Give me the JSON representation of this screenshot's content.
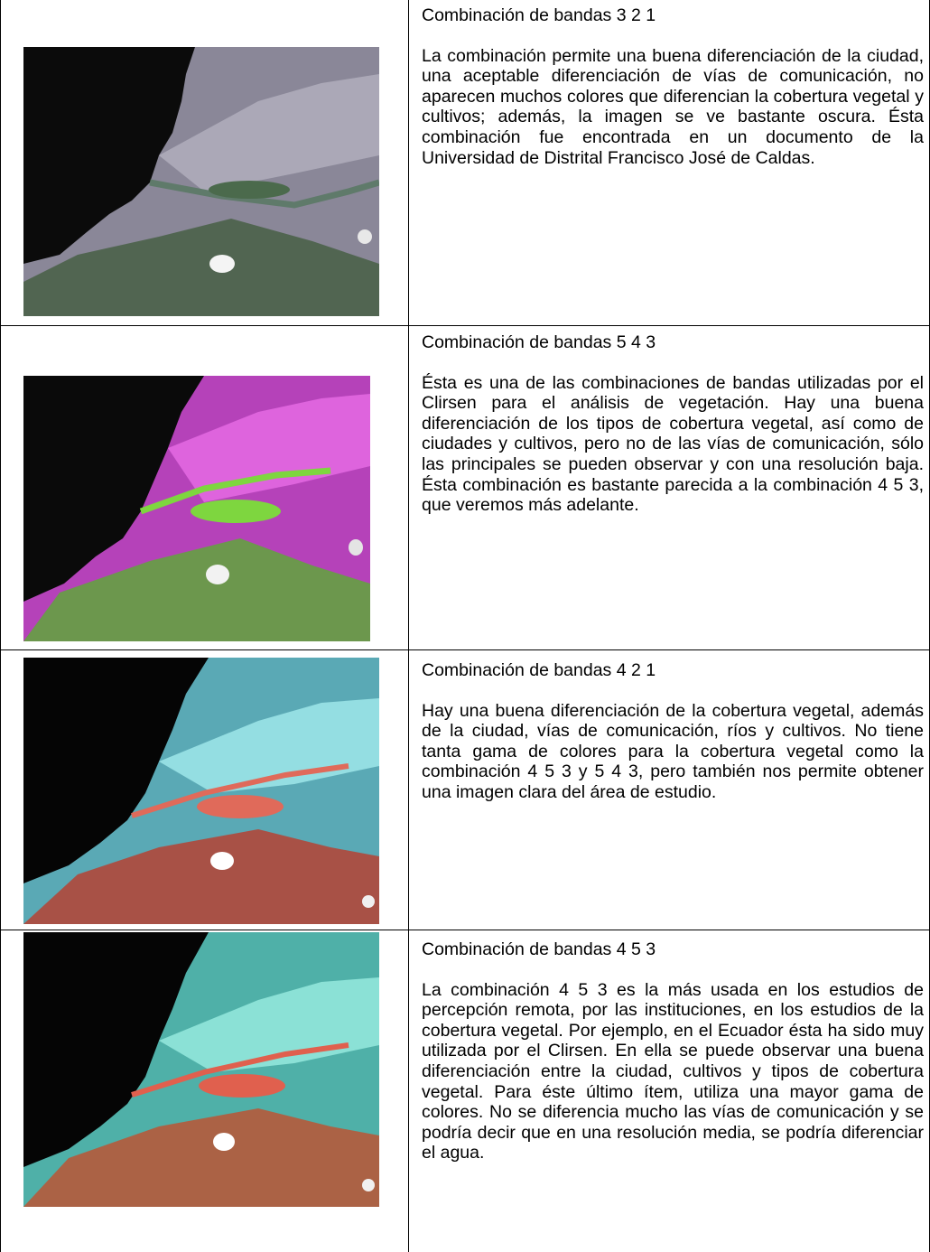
{
  "rows": [
    {
      "title": "Combinación de bandas 3 2 1",
      "text": "La combinación permite una buena diferenciación de la ciudad, una aceptable diferenciación de vías de comunicación, no aparecen muchos colores que diferencian la cobertura vegetal y cultivos; además, la imagen se ve bastante oscura. Ésta combinación fue encontrada en un documento de la Universidad de Distrital Francisco José de Caldas.",
      "image": "satellite-image-321",
      "palette": {
        "sea": "#0b0b0b",
        "land": "#8a8798",
        "light": "#b9b6c4",
        "veg": "#3d5a3a",
        "river": "#5f7a6a",
        "cloud": "#f4f4f4"
      }
    },
    {
      "title": "Combinación de bandas 5 4 3",
      "text": "Ésta es una de las combinaciones de bandas utilizadas por el Clirsen para el análisis de vegetación. Hay una buena diferenciación de los tipos de cobertura vegetal, así como de ciudades y cultivos, pero no de las vías de comunicación, sólo las principales se pueden observar y con una resolución baja. Ésta combinación es bastante parecida a la combinación 4 5 3, que veremos más adelante.",
      "image": "satellite-image-543",
      "palette": {
        "sea": "#0a0a0a",
        "land": "#b542b9",
        "light": "#e86de6",
        "veg": "#5fa63a",
        "river": "#7ed63f",
        "cloud": "#f2f2f2"
      }
    },
    {
      "title": "Combinación de bandas 4 2 1",
      "text": "Hay una buena diferenciación de la cobertura vegetal, además de la ciudad, vías de comunicación, ríos y cultivos. No tiene tanta gama de colores para la cobertura vegetal como la combinación 4 5 3 y 5 4 3, pero también nos permite obtener una imagen clara del área de estudio.",
      "image": "satellite-image-421",
      "palette": {
        "sea": "#050505",
        "land": "#5aa9b5",
        "light": "#a8f0f2",
        "veg": "#b0473a",
        "river": "#e06a5a",
        "cloud": "#ffffff"
      }
    },
    {
      "title": "Combinación de bandas 4 5 3",
      "text": "La combinación 4 5 3 es la más usada en los estudios de percepción remota, por las instituciones, en los estudios de la cobertura vegetal. Por ejemplo, en el Ecuador ésta ha sido muy utilizada por el Clirsen. En ella se puede observar una buena diferenciación entre la ciudad, cultivos y tipos de cobertura vegetal. Para éste último ítem, utiliza una mayor gama de colores. No se diferencia mucho las vías de comunicación y se podría decir que en una resolución media, se podría diferenciar el agua.",
      "image": "satellite-image-453",
      "palette": {
        "sea": "#050505",
        "land": "#4fb0a8",
        "light": "#9ff2e6",
        "veg": "#b55a3a",
        "river": "#e0604e",
        "cloud": "#ffffff"
      }
    }
  ]
}
